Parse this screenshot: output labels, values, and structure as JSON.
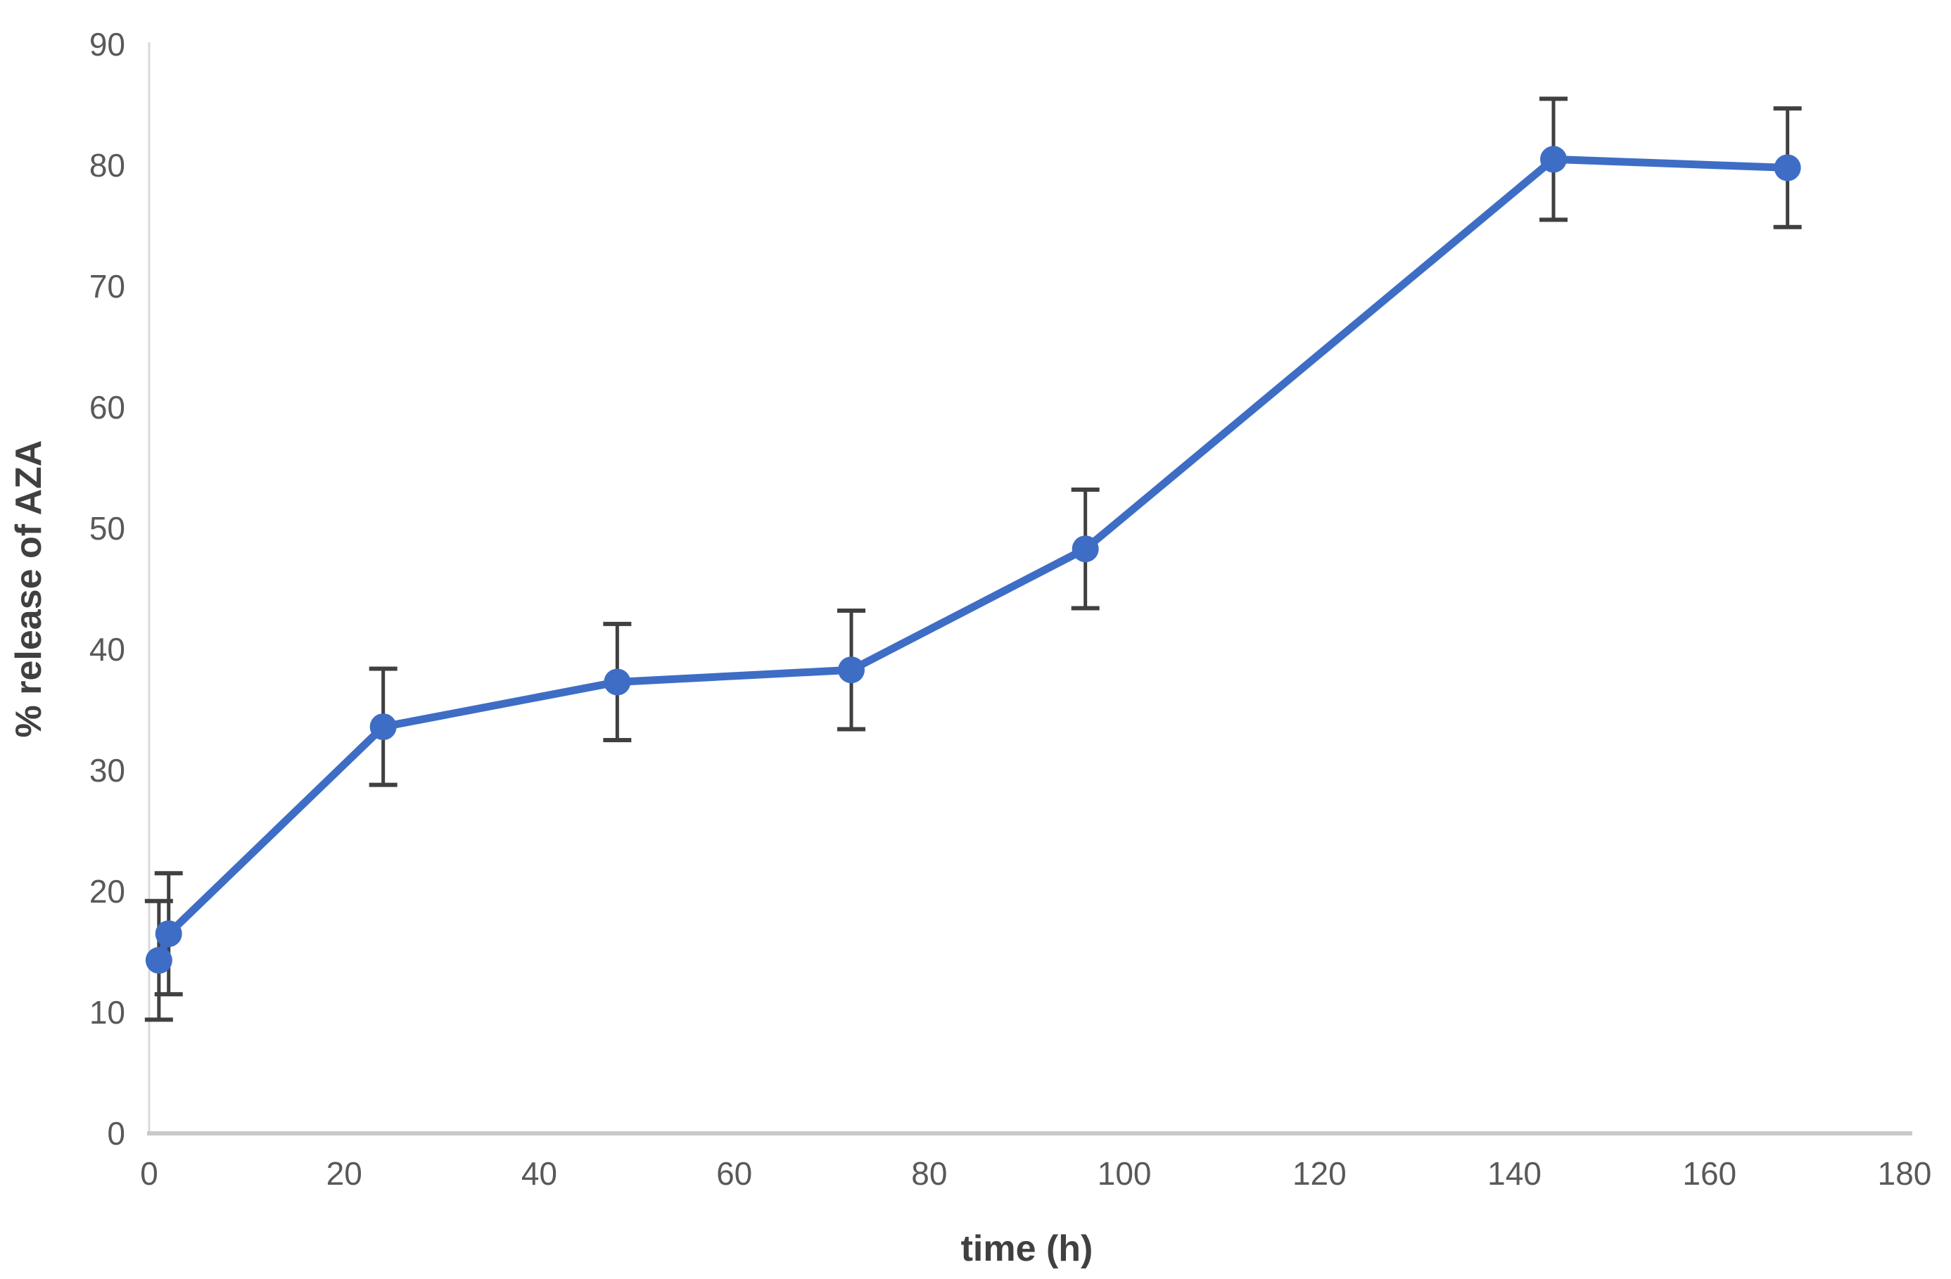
{
  "chart_data": {
    "type": "line",
    "title": "",
    "xlabel": "time (h)",
    "ylabel": "% release of AZA",
    "xlim": [
      0,
      180
    ],
    "ylim": [
      0,
      90
    ],
    "xticks": [
      0,
      20,
      40,
      60,
      80,
      100,
      120,
      140,
      160,
      180
    ],
    "yticks": [
      0,
      10,
      20,
      30,
      40,
      50,
      60,
      70,
      80,
      90
    ],
    "grid": false,
    "legend_position": "none",
    "series": [
      {
        "name": "% release of AZA",
        "x": [
          1,
          2,
          24,
          48,
          72,
          96,
          144,
          168
        ],
        "y": [
          14.3,
          16.5,
          33.6,
          37.3,
          38.3,
          48.3,
          80.5,
          79.8
        ],
        "yerr": [
          4.9,
          5.0,
          4.8,
          4.8,
          4.9,
          4.9,
          5.0,
          4.9
        ],
        "marker": "circle"
      }
    ]
  },
  "colors": {
    "series_line": "#3E6DC5",
    "marker_fill": "#3E6DC5",
    "error_bar": "#404040",
    "y_axis_line": "#D9D9D9",
    "x_axis_line": "#C9C9C9",
    "tick_label": "#595959",
    "axis_title": "#404040",
    "background": "#FFFFFF"
  }
}
